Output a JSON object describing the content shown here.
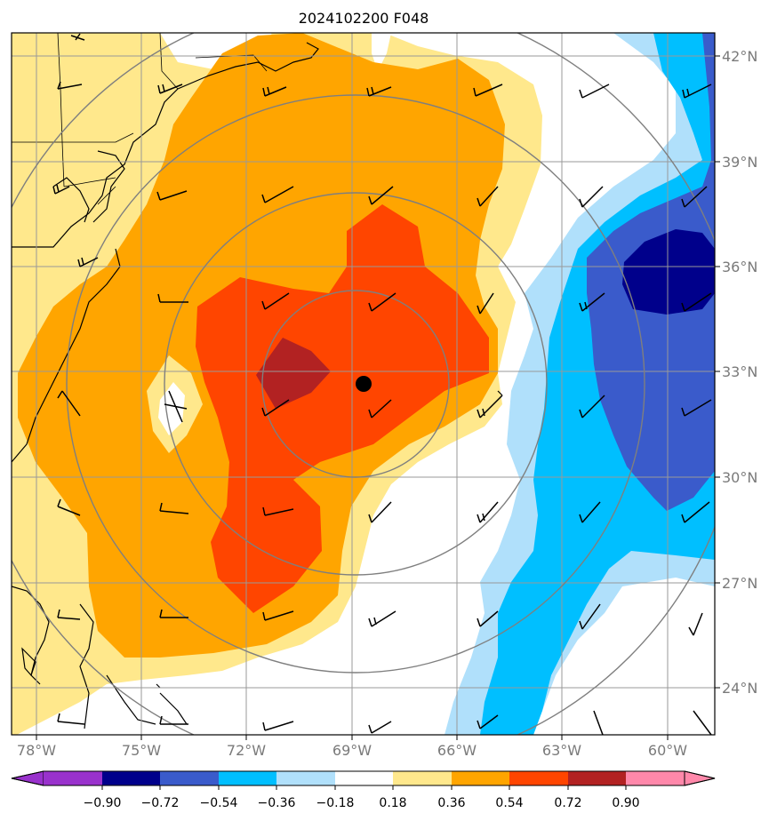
{
  "title": "2024102200 F048",
  "map": {
    "lat_labels": [
      "42°N",
      "39°N",
      "36°N",
      "33°N",
      "30°N",
      "27°N",
      "24°N"
    ],
    "lon_labels": [
      "78°W",
      "75°W",
      "72°W",
      "69°W",
      "66°W",
      "63°W",
      "60°W"
    ],
    "lat_values": [
      42,
      39,
      36,
      33,
      30,
      27,
      24
    ],
    "lon_values": [
      -78,
      -75,
      -72,
      -69,
      -66,
      -63,
      -60
    ],
    "grid": true,
    "storm_center": {
      "lon": -68.7,
      "lat": 32.6
    },
    "range_rings": true
  },
  "colorbar": {
    "tick_labels": [
      "−0.90",
      "−0.72",
      "−0.54",
      "−0.36",
      "−0.18",
      "0.18",
      "0.36",
      "0.54",
      "0.72",
      "0.90"
    ],
    "levels": [
      -0.9,
      -0.72,
      -0.54,
      -0.36,
      -0.18,
      0.18,
      0.36,
      0.54,
      0.72,
      0.9
    ],
    "colors": [
      "#9932cc",
      "#00008b",
      "#3a5bcb",
      "#00bfff",
      "#b0e0fb",
      "#ffffff",
      "#ffe88c",
      "#ffa500",
      "#ff4500",
      "#b22222",
      "#ff88aa"
    ],
    "extend": "both"
  },
  "chart_data": {
    "type": "heatmap",
    "title": "2024102200 F048",
    "x_ticks": [
      "78°W",
      "75°W",
      "72°W",
      "69°W",
      "66°W",
      "63°W",
      "60°W"
    ],
    "y_ticks": [
      "42°N",
      "39°N",
      "36°N",
      "33°N",
      "30°N",
      "27°N",
      "24°N"
    ],
    "xlim": [
      -78.5,
      -59.0
    ],
    "ylim": [
      22.8,
      42.7
    ],
    "levels": [
      -0.9,
      -0.72,
      -0.54,
      -0.36,
      -0.18,
      0.18,
      0.36,
      0.54,
      0.72,
      0.9
    ],
    "marker": {
      "lon": -68.7,
      "lat": 32.6
    },
    "grid": true
  }
}
